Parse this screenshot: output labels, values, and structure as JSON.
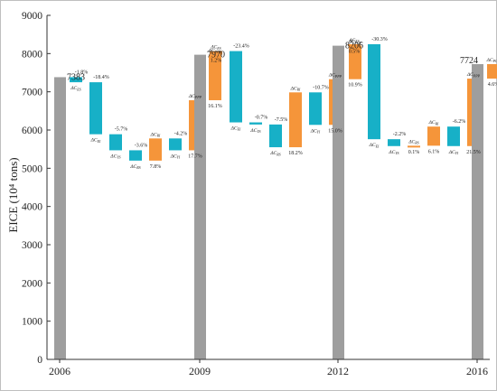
{
  "colors": {
    "total": "#9e9e9e",
    "negative": "#17b0c7",
    "positive": "#f5953a",
    "frame": "#bfbfbf"
  },
  "chart_data": {
    "type": "waterfall",
    "ylabel": "EICE (10⁴ tons)",
    "ylim": [
      0,
      9000
    ],
    "yticks": [
      0,
      1000,
      2000,
      3000,
      4000,
      5000,
      6000,
      7000,
      8000,
      9000
    ],
    "xticks": [
      "2006",
      "2009",
      "2012",
      "2016"
    ],
    "grid": false,
    "periods": [
      {
        "start_year": "2006",
        "start_total": 7383,
        "end_year": "2009",
        "end_total": 7970,
        "components": [
          {
            "label": "ΔC_ES",
            "percent": "-1.8%",
            "from": 7383,
            "to": 7250
          },
          {
            "label": "ΔC_EI",
            "percent": "-18.4%",
            "from": 7250,
            "to": 5890
          },
          {
            "label": "ΔC_YS",
            "percent": "-5.7%",
            "from": 5890,
            "to": 5470
          },
          {
            "label": "ΔC_RS",
            "percent": "-3.6%",
            "from": 5470,
            "to": 5200
          },
          {
            "label": "ΔC_RI",
            "percent": "7.8%",
            "from": 5200,
            "to": 5780
          },
          {
            "label": "ΔC_YI",
            "percent": "-4.2%",
            "from": 5780,
            "to": 5470
          },
          {
            "label": "ΔC_PPP",
            "percent": "17.7%",
            "from": 5470,
            "to": 6780
          },
          {
            "label": "ΔC_POP",
            "percent": "16.1%",
            "from": 6780,
            "to": 7970
          }
        ]
      },
      {
        "start_year": "2009",
        "start_total": 7970,
        "end_year": "2012",
        "end_total": 8206,
        "components": [
          {
            "label": "ΔC_ES",
            "percent": "1.2%",
            "from": 7970,
            "to": 8065
          },
          {
            "label": "ΔC_EI",
            "percent": "-23.4%",
            "from": 8065,
            "to": 6200
          },
          {
            "label": "ΔC_YS",
            "percent": "-0.7%",
            "from": 6200,
            "to": 6145
          },
          {
            "label": "ΔC_RS",
            "percent": "-7.5%",
            "from": 6145,
            "to": 5550
          },
          {
            "label": "ΔC_RI",
            "percent": "18.2%",
            "from": 5550,
            "to": 6985
          },
          {
            "label": "ΔC_YI",
            "percent": "-10.7%",
            "from": 6985,
            "to": 6135
          },
          {
            "label": "ΔC_PPP",
            "percent": "15.0%",
            "from": 6135,
            "to": 7330
          },
          {
            "label": "ΔC_POP",
            "percent": "10.9%",
            "from": 7330,
            "to": 8206
          }
        ]
      },
      {
        "start_year": "2012",
        "start_total": 8206,
        "end_year": "2016",
        "end_total": 7724,
        "components": [
          {
            "label": "ΔC_ES",
            "percent": "0.5%",
            "from": 8206,
            "to": 8245
          },
          {
            "label": "ΔC_EI",
            "percent": "-30.3%",
            "from": 8245,
            "to": 5760
          },
          {
            "label": "ΔC_YS",
            "percent": "-2.2%",
            "from": 5760,
            "to": 5580
          },
          {
            "label": "ΔC_RS",
            "percent": "0.1%",
            "from": 5580,
            "to": 5590
          },
          {
            "label": "ΔC_RI",
            "percent": "6.1%",
            "from": 5590,
            "to": 6090
          },
          {
            "label": "ΔC_YI",
            "percent": "-6.2%",
            "from": 6090,
            "to": 5580
          },
          {
            "label": "ΔC_PPP",
            "percent": "21.5%",
            "from": 5580,
            "to": 7345
          },
          {
            "label": "ΔC_POP",
            "percent": "4.6%",
            "from": 7345,
            "to": 7724
          }
        ]
      }
    ]
  }
}
